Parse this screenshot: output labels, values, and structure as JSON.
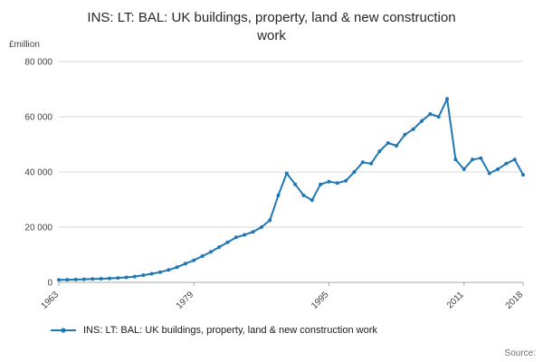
{
  "title": "INS: LT: BAL: UK buildings, property, land & new construction work",
  "y_axis_unit": "£million",
  "legend_label": "INS: LT: BAL: UK buildings, property, land & new construction work",
  "source_label": "Source:",
  "colors": {
    "line": "#1f77b4",
    "grid": "#d9d9d9",
    "axis": "#a6a6a6",
    "tick_text": "#414042",
    "title_text": "#262626"
  },
  "chart_data": {
    "type": "line",
    "title": "INS: LT: BAL: UK buildings, property, land & new construction work",
    "xlabel": "",
    "ylabel": "£million",
    "xlim": [
      1963,
      2018
    ],
    "ylim": [
      0,
      80000
    ],
    "yticks": [
      0,
      20000,
      40000,
      60000,
      80000
    ],
    "ytick_labels": [
      "0",
      "20 000",
      "40 000",
      "60 000",
      "80 000"
    ],
    "xticks": [
      1963,
      1979,
      1995,
      2011,
      2018
    ],
    "xtick_labels": [
      "1963",
      "1979",
      "1995",
      "2011",
      "2018"
    ],
    "grid": "horizontal",
    "legend_position": "bottom-left",
    "marker": "circle",
    "x": [
      1963,
      1964,
      1965,
      1966,
      1967,
      1968,
      1969,
      1970,
      1971,
      1972,
      1973,
      1974,
      1975,
      1976,
      1977,
      1978,
      1979,
      1980,
      1981,
      1982,
      1983,
      1984,
      1985,
      1986,
      1987,
      1988,
      1989,
      1990,
      1991,
      1992,
      1993,
      1994,
      1995,
      1996,
      1997,
      1998,
      1999,
      2000,
      2001,
      2002,
      2003,
      2004,
      2005,
      2006,
      2007,
      2008,
      2009,
      2010,
      2011,
      2012,
      2013,
      2014,
      2015,
      2016,
      2017,
      2018
    ],
    "series": [
      {
        "name": "INS: LT: BAL: UK buildings, property, land & new construction work",
        "values": [
          900,
          950,
          1000,
          1100,
          1200,
          1300,
          1450,
          1600,
          1800,
          2100,
          2600,
          3100,
          3700,
          4500,
          5500,
          6800,
          8000,
          9500,
          11000,
          12800,
          14500,
          16300,
          17200,
          18300,
          20000,
          22500,
          31500,
          39500,
          35500,
          31500,
          29800,
          35500,
          36500,
          36000,
          36800,
          40000,
          43500,
          43000,
          47500,
          50500,
          49500,
          53500,
          55500,
          58500,
          61000,
          60000,
          66500,
          44500,
          41000,
          44500,
          45000,
          39500,
          41000,
          43000,
          44500,
          39000
        ]
      }
    ]
  }
}
